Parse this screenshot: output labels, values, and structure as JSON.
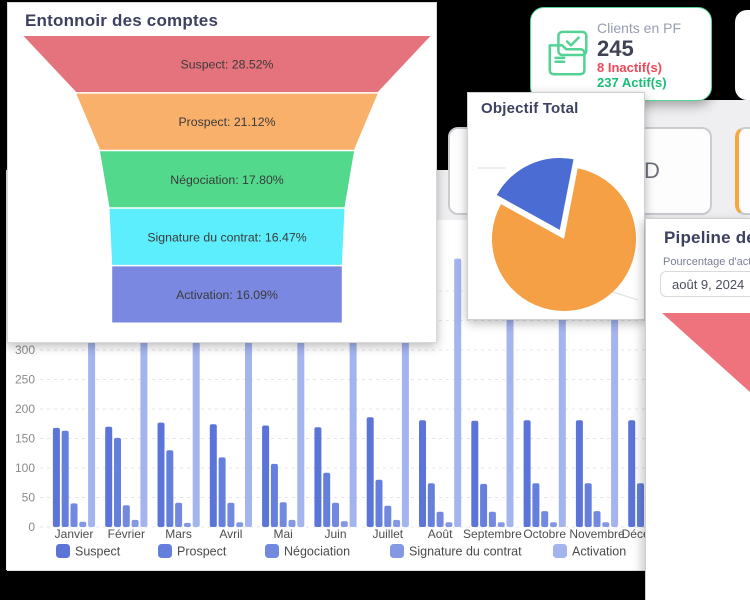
{
  "funnel_panel": {
    "title": "Entonnoir des comptes",
    "stages": [
      {
        "label": "Suspect: 28.52%",
        "value": 28.52,
        "color": "#e5737e"
      },
      {
        "label": "Prospect: 21.12%",
        "value": 21.12,
        "color": "#f9b06a"
      },
      {
        "label": "Négociation: 17.80%",
        "value": 17.8,
        "color": "#52d98b"
      },
      {
        "label": "Signature du contrat: 16.47%",
        "value": 16.47,
        "color": "#5ceefc"
      },
      {
        "label": "Activation: 16.09%",
        "value": 16.09,
        "color": "#7b88e2"
      }
    ]
  },
  "clients_card": {
    "label": "Clients en PF",
    "total": "245",
    "inactive": "8 Inactif(s)",
    "active": "237 Actif(s)",
    "accent_color": "#57d598",
    "inactive_color": "#f0475a",
    "active_color": "#19bd76"
  },
  "objectif_panel": {
    "title": "Objectif Total"
  },
  "pipeline_panel": {
    "title": "Pipeline de",
    "subtitle": "Pourcentage d'activ",
    "date_value": "août 9, 2024",
    "funnel_top_color": "#ee737c"
  },
  "tiles": {
    "tile_d_text": "D"
  },
  "chart_data": [
    {
      "type": "funnel",
      "title": "Entonnoir des comptes",
      "stages": [
        "Suspect",
        "Prospect",
        "Négociation",
        "Signature du contrat",
        "Activation"
      ],
      "values_percent": [
        28.52,
        21.12,
        17.8,
        16.47,
        16.09
      ],
      "colors": [
        "#e5737e",
        "#f9b06a",
        "#52d98b",
        "#5ceefc",
        "#7b88e2"
      ]
    },
    {
      "type": "pie",
      "title": "Objectif Total",
      "slices": [
        {
          "name": "part-bleue",
          "value": 20,
          "color": "#4a6cd3",
          "exploded": true
        },
        {
          "name": "part-orange",
          "value": 80,
          "color": "#f5a045",
          "exploded": false
        }
      ]
    },
    {
      "type": "bar",
      "categories": [
        "Janvier",
        "Février",
        "Mars",
        "Avril",
        "Mai",
        "Juin",
        "Juillet",
        "Août",
        "Septembre",
        "Octobre",
        "Novembre",
        "Décembre"
      ],
      "series": [
        {
          "name": "Suspect",
          "color": "#5b74d8",
          "values": [
            168,
            170,
            177,
            174,
            172,
            169,
            186,
            181,
            180,
            181,
            181,
            181
          ]
        },
        {
          "name": "Prospect",
          "color": "#6580dc",
          "values": [
            163,
            151,
            130,
            118,
            107,
            92,
            80,
            74,
            73,
            74,
            74,
            74
          ]
        },
        {
          "name": "Négociation",
          "color": "#7289df",
          "values": [
            40,
            37,
            41,
            41,
            42,
            41,
            36,
            26,
            26,
            27,
            27,
            27
          ]
        },
        {
          "name": "Signature du contrat",
          "color": "#8498e4",
          "values": [
            9,
            12,
            7,
            8,
            12,
            10,
            12,
            8,
            8,
            8,
            8,
            8
          ]
        },
        {
          "name": "Activation",
          "color": "#a4b4ee",
          "values": [
            455,
            455,
            455,
            455,
            455,
            455,
            455,
            455,
            455,
            455,
            455,
            455
          ]
        }
      ],
      "ylabel": "",
      "xlabel": "",
      "yticks": [
        0,
        50,
        100,
        150,
        200,
        250,
        300
      ],
      "ylim_visible": [
        0,
        300
      ],
      "grid": "dashed",
      "legend_position": "bottom"
    }
  ]
}
